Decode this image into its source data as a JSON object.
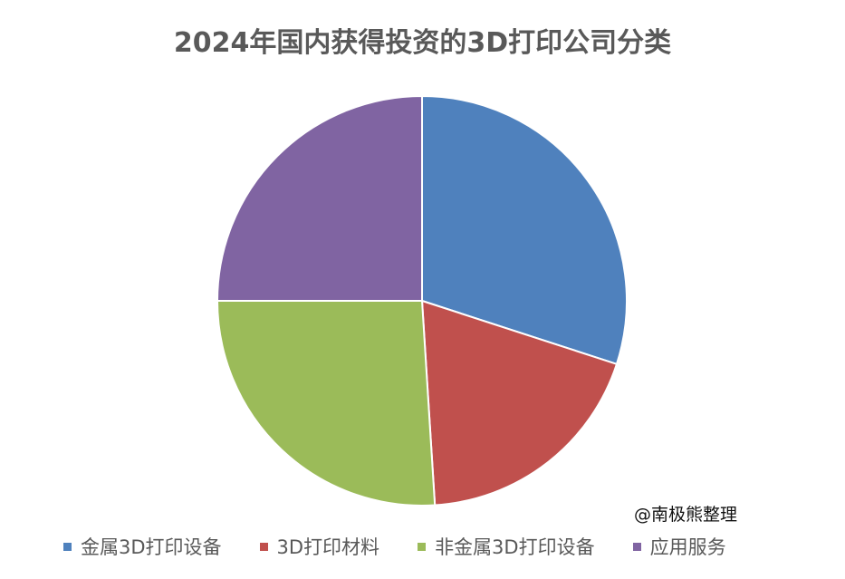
{
  "chart_data": {
    "type": "pie",
    "title": "2024年国内获得投资的3D打印公司分类",
    "categories": [
      "金属3D打印设备",
      "3D打印材料",
      "非金属3D打印设备",
      "应用服务"
    ],
    "values": [
      30,
      19,
      26,
      25
    ],
    "colors": [
      "#4F81BD",
      "#C0504D",
      "#9BBB59",
      "#8064A2"
    ],
    "legend": "bottom"
  },
  "watermark": "@南极熊整理"
}
